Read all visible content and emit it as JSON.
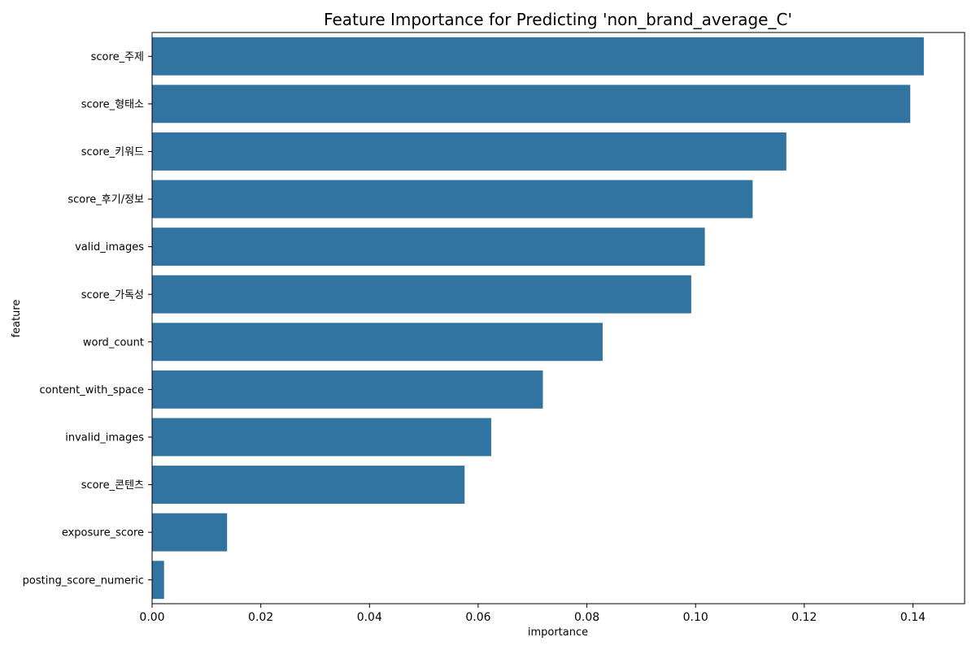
{
  "chart_data": {
    "type": "bar",
    "orientation": "horizontal",
    "title": "Feature Importance for Predicting 'non_brand_average_C'",
    "xlabel": "importance",
    "ylabel": "feature",
    "categories": [
      "score_주제",
      "score_형태소",
      "score_키워드",
      "score_후기/정보",
      "valid_images",
      "score_가독성",
      "word_count",
      "content_with_space",
      "invalid_images",
      "score_콘텐츠",
      "exposure_score",
      "posting_score_numeric"
    ],
    "values": [
      0.142,
      0.1395,
      0.1167,
      0.1105,
      0.1017,
      0.0992,
      0.0829,
      0.0719,
      0.0624,
      0.0575,
      0.0138,
      0.0022
    ],
    "xlim": [
      0,
      0.1495
    ],
    "xticks": [
      0.0,
      0.02,
      0.04,
      0.06,
      0.08,
      0.1,
      0.12,
      0.14
    ],
    "xtick_labels": [
      "0.00",
      "0.02",
      "0.04",
      "0.06",
      "0.08",
      "0.10",
      "0.12",
      "0.14"
    ],
    "grid": false,
    "bar_color": "#3274a1"
  }
}
